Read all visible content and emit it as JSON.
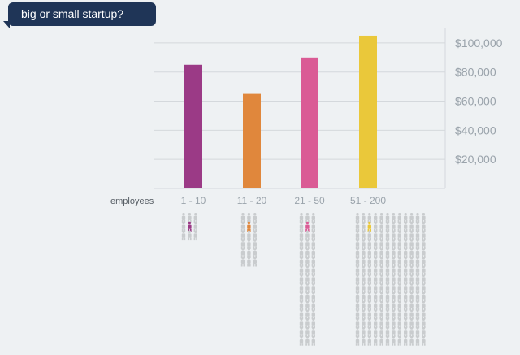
{
  "title": "big or small startup?",
  "row_label": "employees",
  "chart_data": {
    "type": "bar",
    "categories": [
      "1 - 10",
      "11 - 20",
      "21 - 50",
      "51 - 200"
    ],
    "values": [
      85000,
      65000,
      90000,
      105000
    ],
    "y_ticks": [
      "$20,000",
      "$40,000",
      "$60,000",
      "$80,000",
      "$100,000"
    ],
    "ylim": [
      0,
      110000
    ],
    "grid": true,
    "colors": [
      "#9b3a86",
      "#e0873c",
      "#da5b95",
      "#eac83a"
    ],
    "icon_color": "#c9ccce",
    "icon_counts": [
      {
        "rows": 3,
        "cols": 3
      },
      {
        "rows": 6,
        "cols": 3
      },
      {
        "rows": 15,
        "cols": 3
      },
      {
        "rows": 15,
        "cols": 12
      }
    ]
  }
}
